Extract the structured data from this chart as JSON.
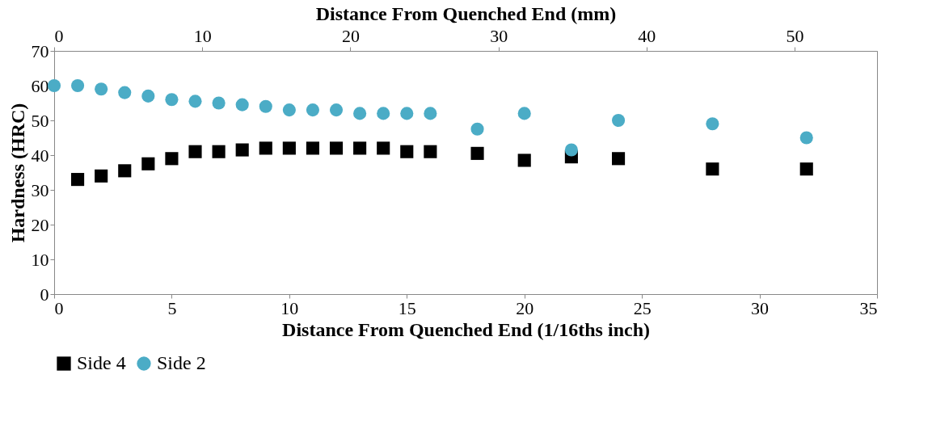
{
  "chart_data": {
    "type": "scatter",
    "xlabel": "Distance From Quenched End (1/16ths inch)",
    "ylabel": "Hardness (HRC)",
    "x2label": "Distance From Quenched End (mm)",
    "xlim": [
      0,
      35
    ],
    "xticks": [
      0,
      5,
      10,
      15,
      20,
      25,
      30,
      35
    ],
    "ylim": [
      0,
      70
    ],
    "yticks": [
      0,
      10,
      20,
      30,
      40,
      50,
      60,
      70
    ],
    "x2lim": [
      0,
      55.5625
    ],
    "x2ticks": [
      0,
      10,
      20,
      30,
      40,
      50
    ],
    "grid": false,
    "legend": "bottom",
    "series": [
      {
        "name": "Side 4",
        "color": "#000000",
        "marker": "square",
        "x": [
          1,
          2,
          3,
          4,
          5,
          6,
          7,
          8,
          9,
          10,
          11,
          12,
          13,
          14,
          15,
          16,
          18,
          20,
          22,
          24,
          28,
          32
        ],
        "values": [
          33,
          34,
          35.5,
          37.5,
          39,
          41,
          41,
          41.5,
          42,
          42,
          42,
          42,
          42,
          42,
          41,
          41,
          40.5,
          38.5,
          39.5,
          39,
          36,
          36
        ]
      },
      {
        "name": "Side 2",
        "color": "#4bacc6",
        "marker": "circle",
        "x": [
          0,
          1,
          2,
          3,
          4,
          5,
          6,
          7,
          8,
          9,
          10,
          11,
          12,
          13,
          14,
          15,
          16,
          18,
          20,
          22,
          24,
          28,
          32
        ],
        "values": [
          60,
          60,
          59,
          58,
          57,
          56,
          55.5,
          55,
          54.5,
          54,
          53,
          53,
          53,
          52,
          52,
          52,
          52,
          47.5,
          52,
          41.5,
          50,
          49,
          45
        ]
      }
    ]
  }
}
